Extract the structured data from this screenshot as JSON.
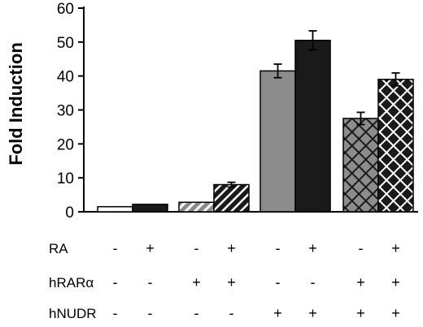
{
  "chart_data": {
    "type": "bar",
    "title": "",
    "xlabel": "",
    "ylabel": "Fold Induction",
    "ylim": [
      0,
      60
    ],
    "yticks": [
      "0",
      "10",
      "20",
      "30",
      "40",
      "50",
      "60"
    ],
    "grid": false,
    "bars": [
      {
        "group": 1,
        "value": 1.5,
        "error": 0.0,
        "fill": "white",
        "pattern": "none"
      },
      {
        "group": 1,
        "value": 2.2,
        "error": 0.0,
        "fill": "black",
        "pattern": "none"
      },
      {
        "group": 2,
        "value": 2.8,
        "error": 0.0,
        "fill": "gray",
        "pattern": "diagonal"
      },
      {
        "group": 2,
        "value": 8.0,
        "error": 0.7,
        "fill": "black",
        "pattern": "diagonal"
      },
      {
        "group": 3,
        "value": 41.5,
        "error": 2.0,
        "fill": "gray",
        "pattern": "none"
      },
      {
        "group": 3,
        "value": 50.5,
        "error": 2.8,
        "fill": "black",
        "pattern": "none"
      },
      {
        "group": 4,
        "value": 27.5,
        "error": 1.8,
        "fill": "gray",
        "pattern": "crosshatch"
      },
      {
        "group": 4,
        "value": 39.0,
        "error": 1.9,
        "fill": "black",
        "pattern": "crosshatch"
      }
    ],
    "conditions": [
      {
        "name": "RA",
        "signs": [
          "-",
          "+",
          "-",
          "+",
          "-",
          "+",
          "-",
          "+"
        ]
      },
      {
        "name": "hRARα",
        "signs": [
          "-",
          "-",
          "+",
          "+",
          "-",
          "-",
          "+",
          "+"
        ]
      },
      {
        "name": "hNUDR",
        "signs": [
          "-",
          "-",
          "-",
          "-",
          "+",
          "+",
          "+",
          "+"
        ]
      }
    ],
    "colors": {
      "gray": "#8c8c8c",
      "black": "#1a1a1a",
      "white": "#ffffff"
    }
  }
}
